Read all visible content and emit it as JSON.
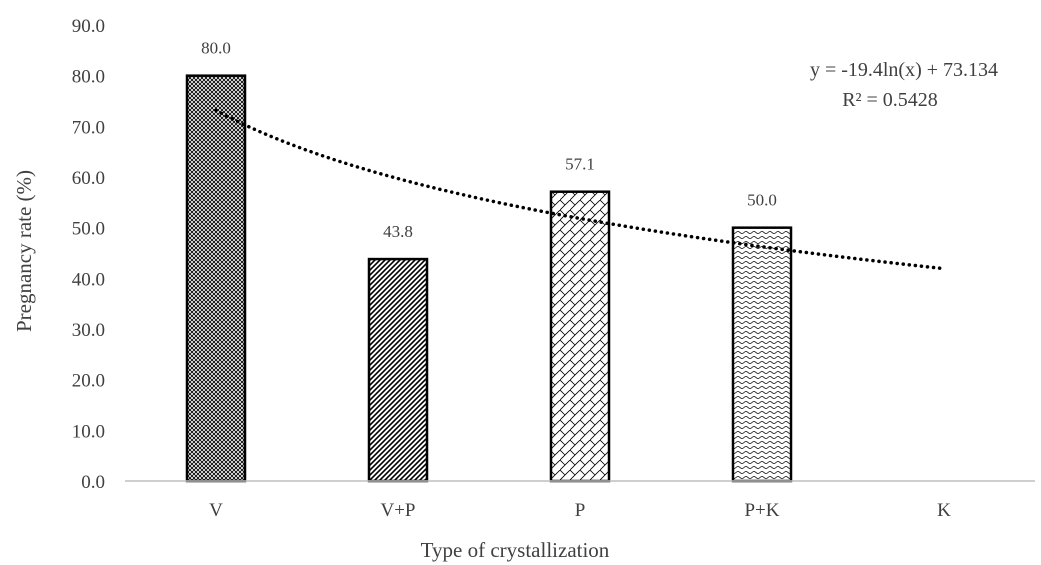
{
  "chart_data": {
    "type": "bar",
    "categories": [
      "V",
      "V+P",
      "P",
      "P+K",
      "K"
    ],
    "values": [
      80.0,
      43.8,
      57.1,
      50.0,
      null
    ],
    "data_labels": [
      "80.0",
      "43.8",
      "57.1",
      "50.0",
      ""
    ],
    "xlabel": "Type of crystallization",
    "ylabel": "Pregnancy rate (%)",
    "ylim": [
      0,
      90
    ],
    "yticks": [
      "0.0",
      "10.0",
      "20.0",
      "30.0",
      "40.0",
      "50.0",
      "60.0",
      "70.0",
      "80.0",
      "90.0"
    ],
    "grid": false,
    "trendline": {
      "type": "logarithmic",
      "a": -19.4,
      "b": 73.134,
      "equation": "y = -19.4ln(x) + 73.134",
      "r_squared": "R² = 0.5428"
    },
    "bar_patterns": [
      "cross-hatch",
      "diagonal",
      "brick",
      "wave"
    ]
  }
}
